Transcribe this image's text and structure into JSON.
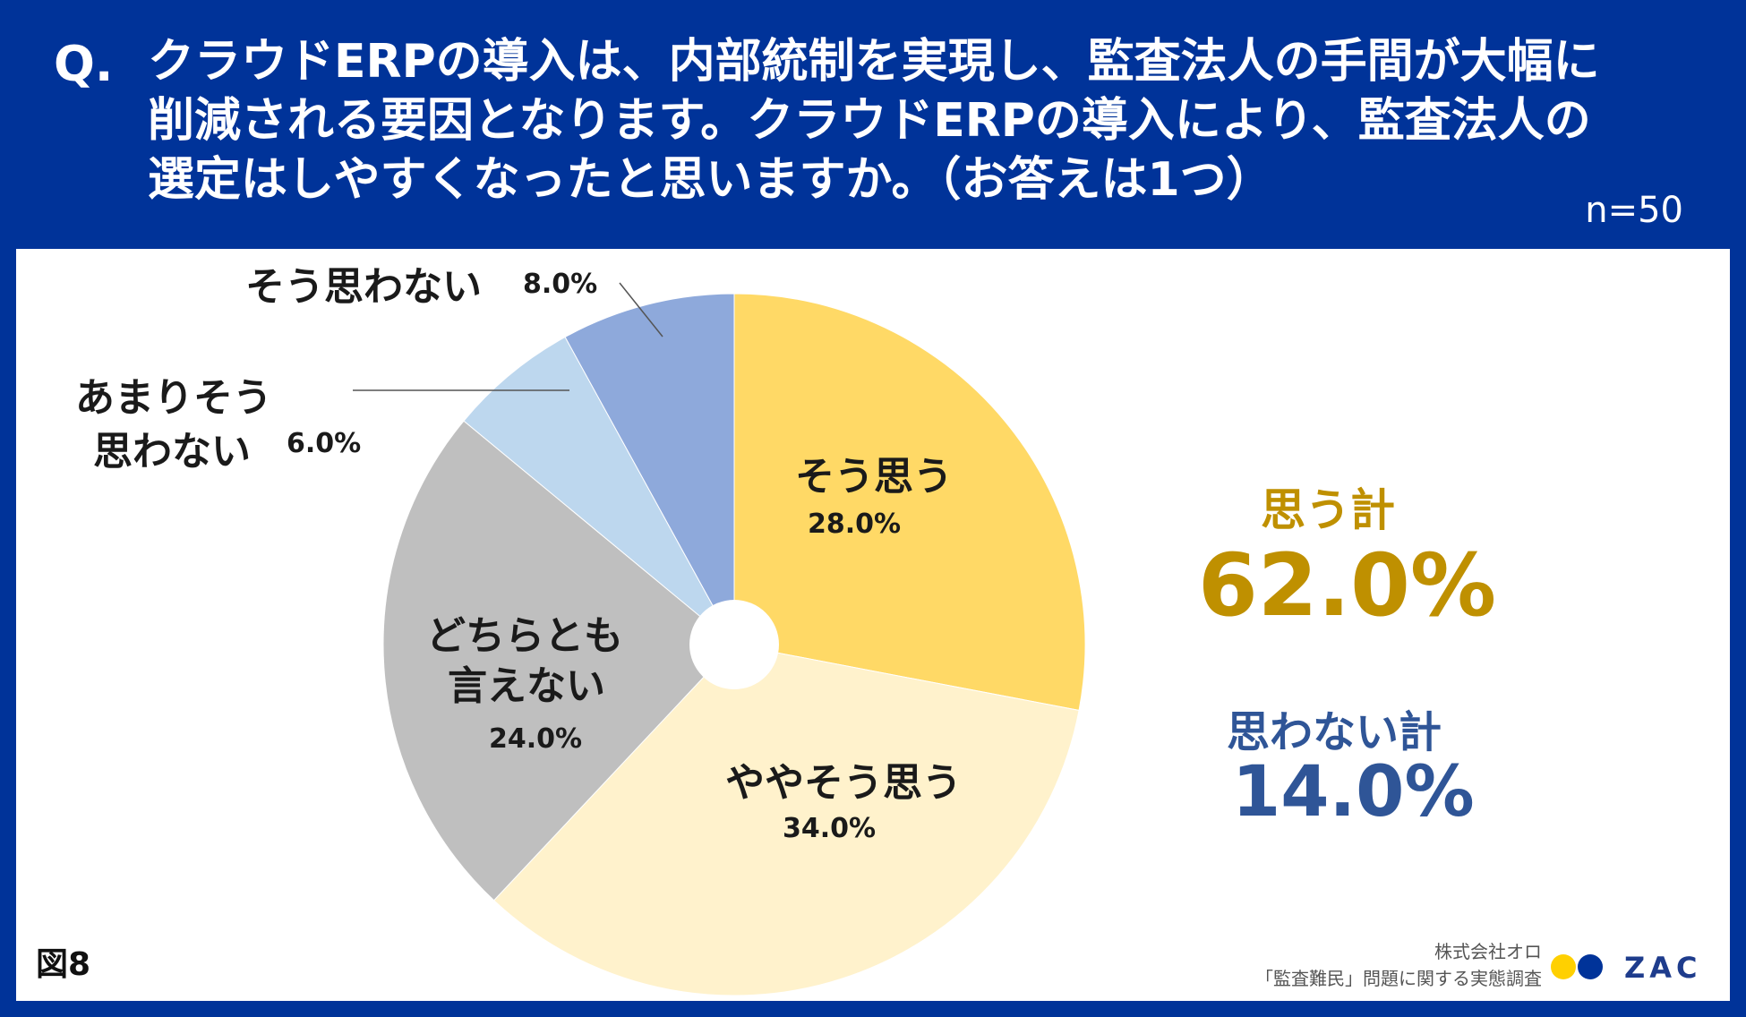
{
  "header": {
    "q_mark": "Q.",
    "question_line1": "クラウドERPの導入は、内部統制を実現し、監査法人の手間が大幅に",
    "question_line2": "削減される要因となります。クラウドERPの導入により、監査法人の",
    "question_line3": "選定はしやすくなったと思いますか。（お答えは1つ）",
    "sample_size": "n=50"
  },
  "chart_data": {
    "type": "pie",
    "title": "クラウドERPの導入により、監査法人の選定はしやすくなったと思いますか。（お答えは1つ）",
    "series": [
      {
        "label": "そう思う",
        "value": 28.0,
        "display": "28.0%",
        "color": "#FFD966"
      },
      {
        "label": "ややそう思う",
        "value": 34.0,
        "display": "34.0%",
        "color": "#FFF2CC"
      },
      {
        "label": "どちらとも言えない",
        "label_line1": "どちらとも",
        "label_line2": "言えない",
        "value": 24.0,
        "display": "24.0%",
        "color": "#BFBFBF"
      },
      {
        "label": "あまりそう思わない",
        "label_line1": "あまりそう",
        "label_line2": "思わない",
        "value": 6.0,
        "display": "6.0%",
        "color": "#BDD7EE"
      },
      {
        "label": "そう思わない",
        "value": 8.0,
        "display": "8.0%",
        "color": "#8EA9DB"
      }
    ],
    "start": "12 o'clock, clockwise",
    "donut_hole": true
  },
  "summary": {
    "agree_title": "思う計",
    "agree_value": "62.0%",
    "agree_color": "#BF9000",
    "disagree_title": "思わない計",
    "disagree_value": "14.0%",
    "disagree_color": "#2F5597"
  },
  "footer": {
    "figure_label": "図8",
    "company": "株式会社オロ",
    "survey": "「監査難民」問題に関する実態調査",
    "logo_text": "ZAC",
    "logo_dot1_color": "#FFD000",
    "logo_dot2_color": "#003399"
  }
}
